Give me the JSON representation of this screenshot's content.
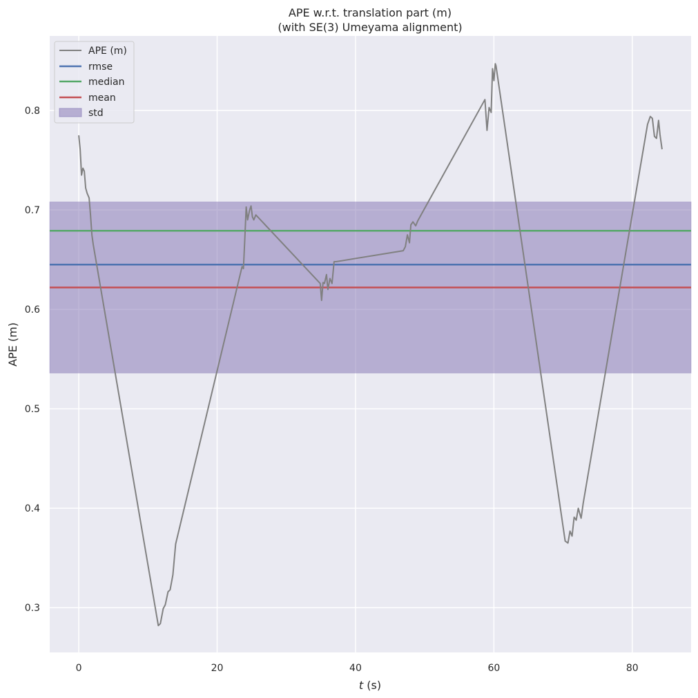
{
  "chart_data": {
    "type": "line",
    "title_lines": [
      "APE w.r.t. translation part (m)",
      "(with SE(3) Umeyama alignment)"
    ],
    "xlabel": "t (s)",
    "xlabel_var": "t",
    "xlabel_unit": " (s)",
    "ylabel": "APE (m)",
    "xlim": [
      -4.2,
      88.5
    ],
    "ylim": [
      0.255,
      0.875
    ],
    "xticks": [
      0,
      20,
      40,
      60,
      80
    ],
    "yticks": [
      0.3,
      0.4,
      0.5,
      0.6,
      0.7,
      0.8
    ],
    "xtick_labels": [
      "0",
      "20",
      "40",
      "60",
      "80"
    ],
    "ytick_labels": [
      "0.3",
      "0.4",
      "0.5",
      "0.6",
      "0.7",
      "0.8"
    ],
    "grid": true,
    "legend_position": "top-left",
    "series": [
      {
        "name": "APE (m)",
        "color": "#808080",
        "x": [
          0.0,
          0.2,
          0.4,
          0.6,
          0.8,
          1.0,
          1.2,
          1.5,
          1.7,
          1.9,
          2.1,
          11.5,
          11.8,
          12.2,
          12.5,
          12.9,
          13.2,
          13.6,
          14.0,
          23.6,
          23.8,
          24.0,
          24.2,
          24.4,
          24.7,
          24.9,
          25.1,
          25.3,
          25.6,
          34.9,
          35.1,
          35.3,
          35.5,
          35.8,
          36.0,
          36.3,
          36.6,
          36.9,
          37.2,
          46.9,
          47.2,
          47.5,
          47.8,
          48.0,
          48.3,
          48.7,
          49.0,
          58.7,
          59.0,
          59.3,
          59.6,
          59.8,
          60.0,
          60.2,
          60.3,
          70.3,
          70.7,
          71.0,
          71.3,
          71.6,
          71.9,
          72.2,
          72.6,
          72.9,
          82.2,
          82.6,
          82.9,
          83.2,
          83.5,
          83.8,
          84.0,
          84.3
        ],
        "y": [
          0.775,
          0.761,
          0.735,
          0.742,
          0.739,
          0.722,
          0.717,
          0.712,
          0.695,
          0.675,
          0.665,
          0.282,
          0.284,
          0.299,
          0.303,
          0.316,
          0.318,
          0.333,
          0.364,
          0.643,
          0.641,
          0.671,
          0.703,
          0.69,
          0.7,
          0.704,
          0.693,
          0.69,
          0.695,
          0.626,
          0.609,
          0.627,
          0.626,
          0.635,
          0.62,
          0.631,
          0.626,
          0.648,
          0.648,
          0.659,
          0.663,
          0.675,
          0.667,
          0.685,
          0.688,
          0.684,
          0.689,
          0.811,
          0.78,
          0.803,
          0.798,
          0.842,
          0.83,
          0.847,
          0.845,
          0.367,
          0.365,
          0.377,
          0.372,
          0.391,
          0.388,
          0.4,
          0.39,
          0.405,
          0.786,
          0.794,
          0.792,
          0.774,
          0.772,
          0.79,
          0.776,
          0.761
        ]
      }
    ],
    "stats": [
      {
        "name": "rmse",
        "value": 0.645,
        "color": "#4c72b0"
      },
      {
        "name": "median",
        "value": 0.679,
        "color": "#55a868"
      },
      {
        "name": "mean",
        "value": 0.622,
        "color": "#c44e52"
      }
    ],
    "std_band": {
      "name": "std",
      "low": 0.536,
      "high": 0.708,
      "color": "#8172b2"
    }
  }
}
